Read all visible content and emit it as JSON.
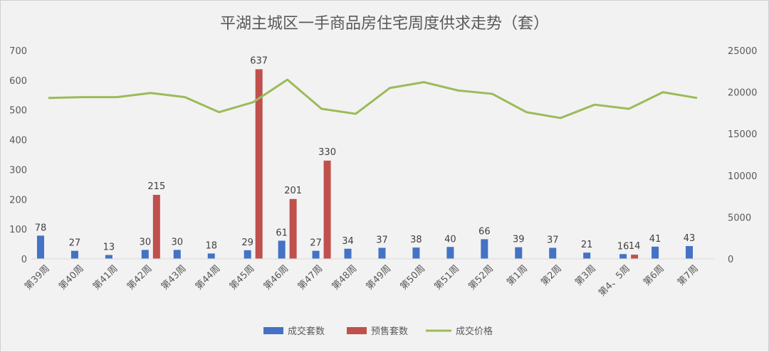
{
  "chart_data": {
    "type": "bar",
    "title": "平湖主城区一手商品房住宅周度供求走势（套）",
    "categories": [
      "第39周",
      "第40周",
      "第41周",
      "第42周",
      "第43周",
      "第44周",
      "第45周",
      "第46周",
      "第47周",
      "第48周",
      "第49周",
      "第50周",
      "第51周",
      "第52周",
      "第1周",
      "第2周",
      "第3周",
      "第4、5周",
      "第6周",
      "第7周"
    ],
    "series": [
      {
        "name": "成交套数",
        "type": "bar",
        "axis": "left",
        "color": "#4472c4",
        "values": [
          78,
          27,
          13,
          30,
          30,
          18,
          29,
          61,
          27,
          34,
          37,
          38,
          40,
          66,
          39,
          37,
          21,
          16,
          41,
          43
        ]
      },
      {
        "name": "预售套数",
        "type": "bar",
        "axis": "left",
        "color": "#c0504d",
        "values": [
          null,
          null,
          null,
          215,
          null,
          null,
          637,
          201,
          330,
          null,
          null,
          null,
          null,
          null,
          null,
          null,
          null,
          14,
          null,
          null
        ]
      },
      {
        "name": "成交价格",
        "type": "line",
        "axis": "right",
        "color": "#9bbb59",
        "values": [
          19300,
          19400,
          19400,
          19900,
          19400,
          17600,
          18800,
          21500,
          18000,
          17400,
          20500,
          21200,
          20200,
          19800,
          17600,
          16900,
          18500,
          18000,
          20000,
          19300
        ]
      }
    ],
    "y_left": {
      "min": 0,
      "max": 700,
      "ticks": [
        "0",
        "100",
        "200",
        "300",
        "400",
        "500",
        "600",
        "700"
      ]
    },
    "y_right": {
      "min": 0,
      "max": 25000,
      "ticks": [
        "0",
        "5000",
        "10000",
        "15000",
        "20000",
        "25000"
      ]
    },
    "grid": false,
    "legend_position": "bottom",
    "data_labels": {
      "成交套数": [
        "78",
        "27",
        "13",
        "30",
        "30",
        "18",
        "29",
        "61",
        "27",
        "34",
        "37",
        "38",
        "40",
        "66",
        "39",
        "37",
        "21",
        "16",
        "41",
        "43"
      ],
      "预售套数": [
        "215",
        "637",
        "201",
        "330",
        "14"
      ]
    }
  }
}
